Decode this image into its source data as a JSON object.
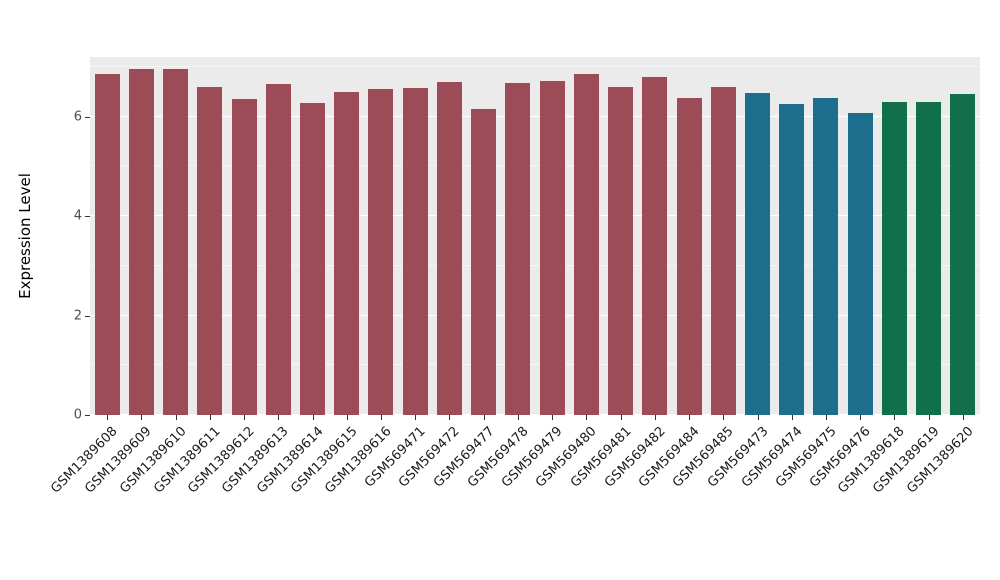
{
  "chart_data": {
    "type": "bar",
    "title": "",
    "xlabel": "",
    "ylabel": "Expression Level",
    "ylim": [
      0,
      7.2
    ],
    "yticks": [
      0,
      2,
      4,
      6
    ],
    "yticks_minor": [
      1,
      3,
      5,
      7
    ],
    "grid": "on",
    "legend": "none",
    "panel_background": "#EBEBEB",
    "categories": [
      "GSM1389608",
      "GSM1389609",
      "GSM1389610",
      "GSM1389611",
      "GSM1389612",
      "GSM1389613",
      "GSM1389614",
      "GSM1389615",
      "GSM1389616",
      "GSM569471",
      "GSM569472",
      "GSM569477",
      "GSM569478",
      "GSM569479",
      "GSM569480",
      "GSM569481",
      "GSM569482",
      "GSM569484",
      "GSM569485",
      "GSM569473",
      "GSM569474",
      "GSM569475",
      "GSM569476",
      "GSM1389618",
      "GSM1389619",
      "GSM1389620"
    ],
    "values": [
      6.85,
      6.95,
      6.95,
      6.6,
      6.35,
      6.65,
      6.28,
      6.5,
      6.55,
      6.58,
      6.7,
      6.15,
      6.68,
      6.72,
      6.85,
      6.6,
      6.8,
      6.38,
      6.6,
      6.48,
      6.25,
      6.38,
      6.08,
      6.3,
      6.3,
      6.45
    ],
    "bar_colors": [
      "#9D4B57",
      "#9D4B57",
      "#9D4B57",
      "#9D4B57",
      "#9D4B57",
      "#9D4B57",
      "#9D4B57",
      "#9D4B57",
      "#9D4B57",
      "#9D4B57",
      "#9D4B57",
      "#9D4B57",
      "#9D4B57",
      "#9D4B57",
      "#9D4B57",
      "#9D4B57",
      "#9D4B57",
      "#9D4B57",
      "#9D4B57",
      "#1D6D8D",
      "#1D6D8D",
      "#1D6D8D",
      "#1D6D8D",
      "#11704B",
      "#11704B",
      "#11704B"
    ],
    "group_colors": {
      "group1": "#9D4B57",
      "group2": "#1D6D8D",
      "group3": "#11704B"
    }
  }
}
